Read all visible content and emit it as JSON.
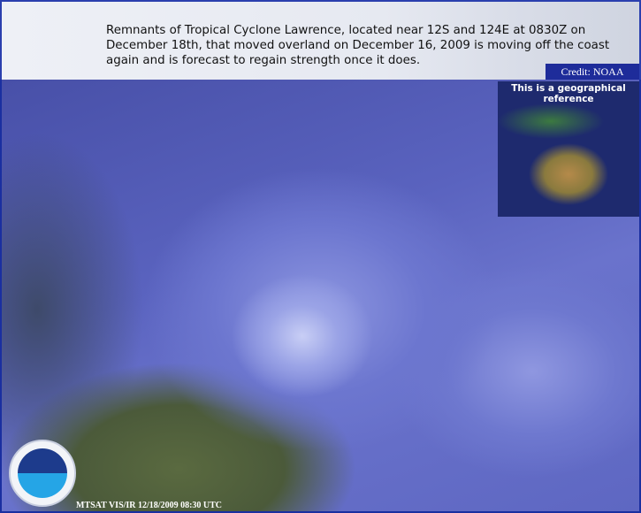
{
  "header": {
    "caption": "Remnants of Tropical Cyclone Lawrence, located near 12S and 124E at 0830Z on December 18th, that moved overland on December 16, 2009 is moving off the coast again and is forecast to regain strength once it does.",
    "credit": "Credit: NOAA"
  },
  "inset": {
    "label": "This is a geographical reference"
  },
  "logo": {
    "text": "NOAA"
  },
  "image": {
    "timestamp": "MTSAT VIS/IR 12/18/2009 08:30 UTC"
  }
}
